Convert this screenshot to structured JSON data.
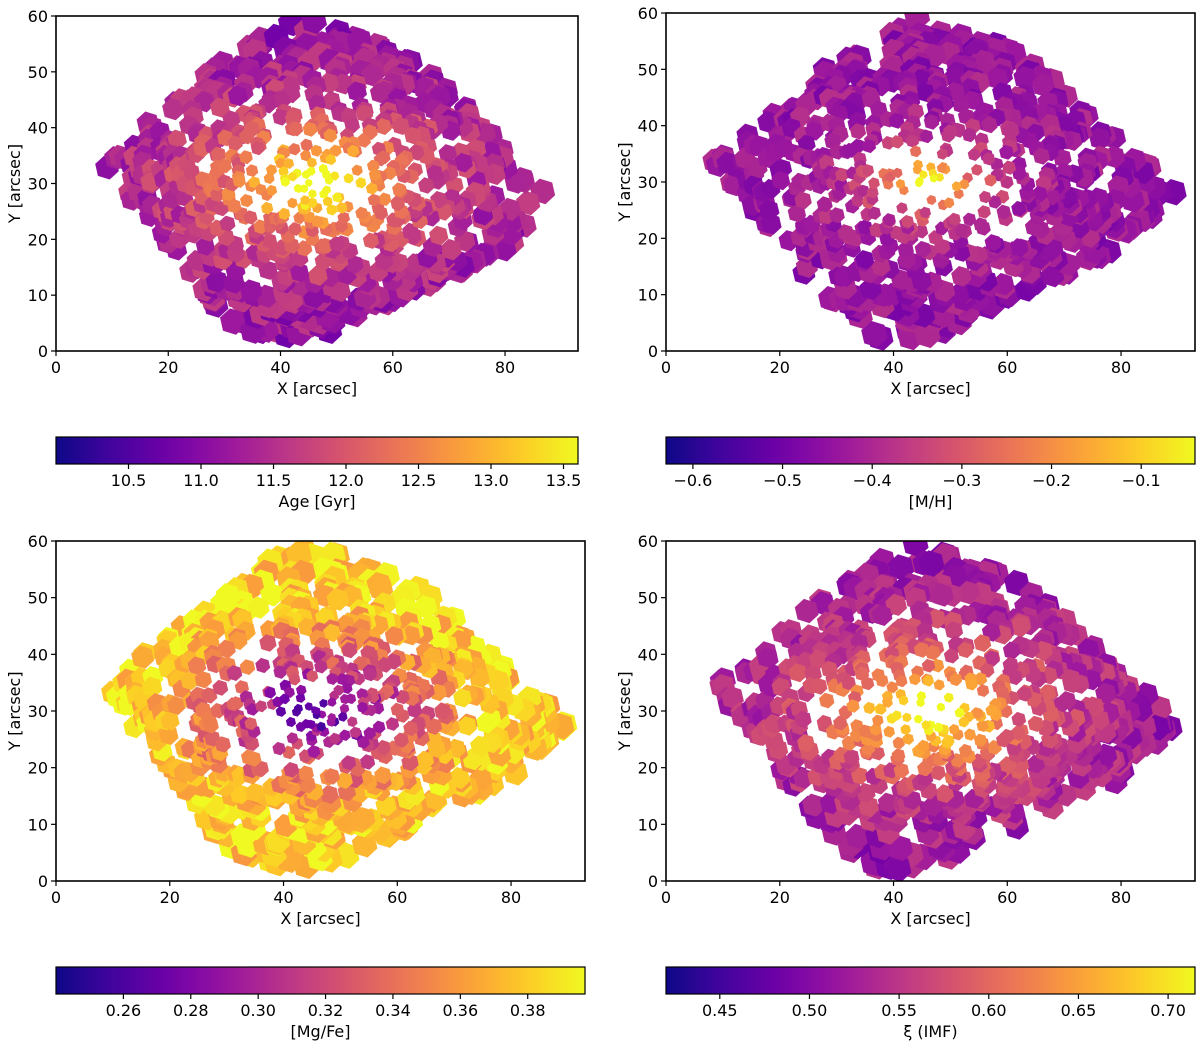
{
  "figure": {
    "description_colormap": "plasma"
  },
  "colormap": {
    "name": "plasma",
    "stops": [
      "#0d0887",
      "#46039f",
      "#7201a8",
      "#9c179e",
      "#bd3786",
      "#d8576b",
      "#ed7953",
      "#fb9f3a",
      "#fdca26",
      "#f0f921"
    ]
  },
  "chart_data": [
    {
      "type": "heatmap",
      "id": "age",
      "title": "",
      "xlabel": "X [arcsec]",
      "ylabel": "Y [arcsec]",
      "xlim": [
        0,
        93
      ],
      "ylim": [
        0,
        60
      ],
      "xticks": [
        "0",
        "20",
        "40",
        "60",
        "80"
      ],
      "yticks": [
        "0",
        "10",
        "20",
        "30",
        "40",
        "50",
        "60"
      ],
      "center": [
        46,
        30
      ],
      "pattern": "bright-core-dark-outskirts",
      "colorbar": {
        "label": "Age [Gyr]",
        "range": [
          10.0,
          13.6
        ],
        "ticks": [
          "10.5",
          "11.0",
          "11.5",
          "12.0",
          "12.5",
          "13.0",
          "13.5"
        ],
        "tick_values": [
          10.5,
          11.0,
          11.5,
          12.0,
          12.5,
          13.0,
          13.5
        ]
      }
    },
    {
      "type": "heatmap",
      "id": "metallicity",
      "title": "",
      "xlabel": "X [arcsec]",
      "ylabel": "Y [arcsec]",
      "xlim": [
        0,
        93
      ],
      "ylim": [
        0,
        60
      ],
      "xticks": [
        "0",
        "20",
        "40",
        "60",
        "80"
      ],
      "yticks": [
        "0",
        "10",
        "20",
        "30",
        "40",
        "50",
        "60"
      ],
      "center": [
        46,
        30
      ],
      "pattern": "compact-bright-core",
      "colorbar": {
        "label": "[M/H]",
        "range": [
          -0.63,
          -0.04
        ],
        "ticks": [
          "−0.6",
          "−0.5",
          "−0.4",
          "−0.3",
          "−0.2",
          "−0.1"
        ],
        "tick_values": [
          -0.6,
          -0.5,
          -0.4,
          -0.3,
          -0.2,
          -0.1
        ]
      }
    },
    {
      "type": "heatmap",
      "id": "mgfe",
      "title": "",
      "xlabel": "X [arcsec]",
      "ylabel": "Y [arcsec]",
      "xlim": [
        0,
        93
      ],
      "ylim": [
        0,
        60
      ],
      "xticks": [
        "0",
        "20",
        "40",
        "60",
        "80"
      ],
      "yticks": [
        "0",
        "10",
        "20",
        "30",
        "40",
        "50",
        "60"
      ],
      "center": [
        46,
        30
      ],
      "pattern": "dark-core-bright-outskirts",
      "colorbar": {
        "label": "[Mg/Fe]",
        "range": [
          0.24,
          0.397
        ],
        "ticks": [
          "0.26",
          "0.28",
          "0.30",
          "0.32",
          "0.34",
          "0.36",
          "0.38"
        ],
        "tick_values": [
          0.26,
          0.28,
          0.3,
          0.32,
          0.34,
          0.36,
          0.38
        ]
      }
    },
    {
      "type": "heatmap",
      "id": "imf",
      "title": "",
      "xlabel": "X [arcsec]",
      "ylabel": "Y [arcsec]",
      "xlim": [
        0,
        93
      ],
      "ylim": [
        0,
        60
      ],
      "xticks": [
        "0",
        "20",
        "40",
        "60",
        "80"
      ],
      "yticks": [
        "0",
        "10",
        "20",
        "30",
        "40",
        "50",
        "60"
      ],
      "center": [
        46,
        30
      ],
      "pattern": "bright-core-dark-outskirts",
      "colorbar": {
        "label": "ξ (IMF)",
        "range": [
          0.42,
          0.715
        ],
        "ticks": [
          "0.45",
          "0.50",
          "0.55",
          "0.60",
          "0.65",
          "0.70"
        ],
        "tick_values": [
          0.45,
          0.5,
          0.55,
          0.6,
          0.65,
          0.7
        ]
      }
    }
  ]
}
